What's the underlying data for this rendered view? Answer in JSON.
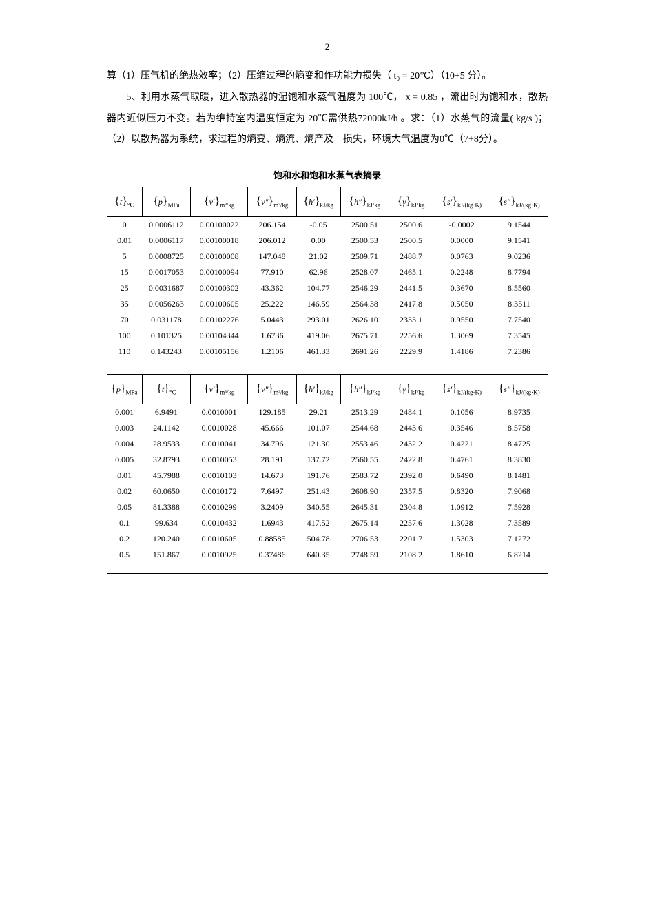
{
  "pagenum": "2",
  "para1": "算（1）压气机的绝热效率；（2）压缩过程的熵变和作功能力损失（ t₀ = 20℃）（10+5 分）。",
  "para2": "　　5、利用水蒸气取暖，进入散热器的湿饱和水蒸气温度为 100℃， x = 0.85 ，流出时为饱和水，散热器内近似压力不变。若为维持室内温度恒定为 20℃需供热72000kJ/h 。求：（1）水蒸气的流量( kg/s )；（2）以散热器为系统，求过程的熵变、熵流、熵产及　损失，环境大气温度为0℃（7+8分）。",
  "tabletitle": "饱和水和饱和水蒸气表摘录",
  "table1_headers": {
    "c0": {
      "sym": "t",
      "unit": "°C"
    },
    "c1": {
      "sym": "p",
      "unit": "MPa"
    },
    "c2": {
      "sym": "v′",
      "unit": "m³/kg"
    },
    "c3": {
      "sym": "v″",
      "unit": "m³/kg"
    },
    "c4": {
      "sym": "h′",
      "unit": "kJ/kg"
    },
    "c5": {
      "sym": "h″",
      "unit": "kJ/kg"
    },
    "c6": {
      "sym": "γ",
      "unit": "kJ/kg"
    },
    "c7": {
      "sym": "s′",
      "unit": "kJ/(kg·K)"
    },
    "c8": {
      "sym": "s″",
      "unit": "kJ/(kg·K)"
    }
  },
  "table1_rows": [
    [
      "0",
      "0.0006112",
      "0.00100022",
      "206.154",
      "-0.05",
      "2500.51",
      "2500.6",
      "-0.0002",
      "9.1544"
    ],
    [
      "0.01",
      "0.0006117",
      "0.00100018",
      "206.012",
      "0.00",
      "2500.53",
      "2500.5",
      "0.0000",
      "9.1541"
    ],
    [
      "5",
      "0.0008725",
      "0.00100008",
      "147.048",
      "21.02",
      "2509.71",
      "2488.7",
      "0.0763",
      "9.0236"
    ],
    [
      "15",
      "0.0017053",
      "0.00100094",
      "77.910",
      "62.96",
      "2528.07",
      "2465.1",
      "0.2248",
      "8.7794"
    ],
    [
      "25",
      "0.0031687",
      "0.00100302",
      "43.362",
      "104.77",
      "2546.29",
      "2441.5",
      "0.3670",
      "8.5560"
    ],
    [
      "35",
      "0.0056263",
      "0.00100605",
      "25.222",
      "146.59",
      "2564.38",
      "2417.8",
      "0.5050",
      "8.3511"
    ],
    [
      "70",
      "0.031178",
      "0.00102276",
      "5.0443",
      "293.01",
      "2626.10",
      "2333.1",
      "0.9550",
      "7.7540"
    ],
    [
      "100",
      "0.101325",
      "0.00104344",
      "1.6736",
      "419.06",
      "2675.71",
      "2256.6",
      "1.3069",
      "7.3545"
    ],
    [
      "110",
      "0.143243",
      "0.00105156",
      "1.2106",
      "461.33",
      "2691.26",
      "2229.9",
      "1.4186",
      "7.2386"
    ]
  ],
  "table2_headers": {
    "c0": {
      "sym": "p",
      "unit": "MPa"
    },
    "c1": {
      "sym": "t",
      "unit": "°C"
    },
    "c2": {
      "sym": "v′",
      "unit": "m³/kg"
    },
    "c3": {
      "sym": "v″",
      "unit": "m³/kg"
    },
    "c4": {
      "sym": "h′",
      "unit": "kJ/kg"
    },
    "c5": {
      "sym": "h″",
      "unit": "kJ/kg"
    },
    "c6": {
      "sym": "γ",
      "unit": "kJ/kg"
    },
    "c7": {
      "sym": "s′",
      "unit": "kJ/(kg·K)"
    },
    "c8": {
      "sym": "s″",
      "unit": "kJ/(kg·K)"
    }
  },
  "table2_rows": [
    [
      "0.001",
      "6.9491",
      "0.0010001",
      "129.185",
      "29.21",
      "2513.29",
      "2484.1",
      "0.1056",
      "8.9735"
    ],
    [
      "0.003",
      "24.1142",
      "0.0010028",
      "45.666",
      "101.07",
      "2544.68",
      "2443.6",
      "0.3546",
      "8.5758"
    ],
    [
      "0.004",
      "28.9533",
      "0.0010041",
      "34.796",
      "121.30",
      "2553.46",
      "2432.2",
      "0.4221",
      "8.4725"
    ],
    [
      "0.005",
      "32.8793",
      "0.0010053",
      "28.191",
      "137.72",
      "2560.55",
      "2422.8",
      "0.4761",
      "8.3830"
    ],
    [
      "0.01",
      "45.7988",
      "0.0010103",
      "14.673",
      "191.76",
      "2583.72",
      "2392.0",
      "0.6490",
      "8.1481"
    ],
    [
      "0.02",
      "60.0650",
      "0.0010172",
      "7.6497",
      "251.43",
      "2608.90",
      "2357.5",
      "0.8320",
      "7.9068"
    ],
    [
      "0.05",
      "81.3388",
      "0.0010299",
      "3.2409",
      "340.55",
      "2645.31",
      "2304.8",
      "1.0912",
      "7.5928"
    ],
    [
      "0.1",
      "99.634",
      "0.0010432",
      "1.6943",
      "417.52",
      "2675.14",
      "2257.6",
      "1.3028",
      "7.3589"
    ],
    [
      "0.2",
      "120.240",
      "0.0010605",
      "0.88585",
      "504.78",
      "2706.53",
      "2201.7",
      "1.5303",
      "7.1272"
    ],
    [
      "0.5",
      "151.867",
      "0.0010925",
      "0.37486",
      "640.35",
      "2748.59",
      "2108.2",
      "1.8610",
      "6.8214"
    ]
  ],
  "colwidths": [
    "8%",
    "11%",
    "13%",
    "11%",
    "10%",
    "11%",
    "10%",
    "13%",
    "13%"
  ]
}
